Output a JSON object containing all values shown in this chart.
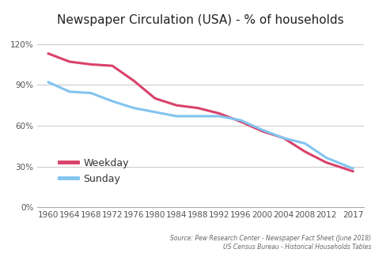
{
  "title": "Newspaper Circulation (USA) - % of households",
  "source_text": "Source: Pew Research Center - Newspaper Fact Sheet (June 2018)\nUS Census Bureau - Historical Households Tables",
  "weekday_x": [
    1960,
    1964,
    1968,
    1972,
    1976,
    1980,
    1984,
    1988,
    1992,
    1996,
    2000,
    2004,
    2008,
    2012,
    2017
  ],
  "weekday_y": [
    1.13,
    1.07,
    1.05,
    1.04,
    0.93,
    0.8,
    0.75,
    0.73,
    0.69,
    0.63,
    0.56,
    0.51,
    0.41,
    0.33,
    0.265
  ],
  "sunday_x": [
    1960,
    1964,
    1968,
    1972,
    1976,
    1980,
    1984,
    1988,
    1992,
    1996,
    2000,
    2004,
    2008,
    2012,
    2017
  ],
  "sunday_y": [
    0.92,
    0.85,
    0.84,
    0.78,
    0.73,
    0.7,
    0.67,
    0.67,
    0.67,
    0.64,
    0.57,
    0.51,
    0.47,
    0.365,
    0.285
  ],
  "weekday_color": "#d9426a",
  "sunday_color": "#82c4ef",
  "background_color": "#ffffff",
  "ylim": [
    0,
    1.3
  ],
  "yticks": [
    0,
    0.3,
    0.6,
    0.9,
    1.2
  ],
  "ytick_labels": [
    "0%",
    "30%",
    "60%",
    "90%",
    "120%"
  ],
  "xticks": [
    1960,
    1964,
    1968,
    1972,
    1976,
    1980,
    1984,
    1988,
    1992,
    1996,
    2000,
    2004,
    2008,
    2012,
    2017
  ],
  "legend_weekday": "Weekday",
  "legend_sunday": "Sunday",
  "line_width": 2.2,
  "title_fontsize": 11,
  "tick_fontsize": 7.5,
  "legend_fontsize": 9,
  "source_fontsize": 5.5
}
